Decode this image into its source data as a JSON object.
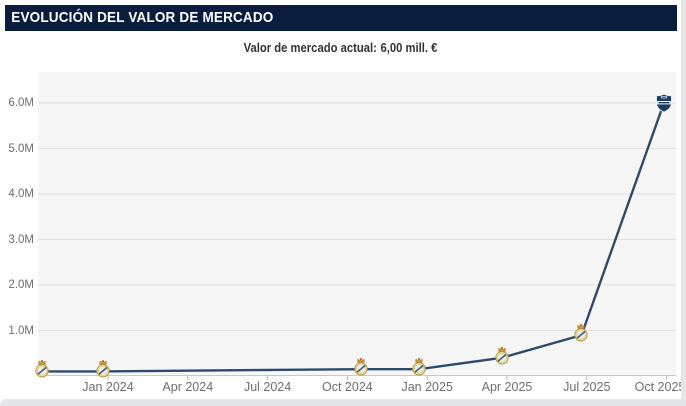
{
  "page": {
    "top_clipped_text": "EVOLUCIÓN DEL",
    "header_title": "EVOLUCIÓN DEL VALOR DE MERCADO",
    "subtitle_label": "Valor de mercado actual:",
    "subtitle_value": "6,00 mill. €"
  },
  "colors": {
    "header_navy": "#0a1d3f",
    "line_navy": "#2e4a6b",
    "plot_background": "#f6f6f6",
    "gridline": "#e0e0e0",
    "axis_line": "#c8c8c8",
    "tick_mark": "#b5b5b5",
    "label_gray": "#6e6e6e",
    "subtitle_text": "#333333",
    "crest_gold": "#b99c3c",
    "crest_cream": "#f3eed8"
  },
  "chart_data": {
    "type": "line",
    "title": "EVOLUCIÓN DEL VALOR DE MERCADO",
    "subtitle": "Valor de mercado actual: 6,00 mill. €",
    "unit": "mill. €",
    "ylabel": "",
    "xlabel": "",
    "ylim": [
      0,
      6.7
    ],
    "grid": true,
    "legend": "none",
    "y_ticks": [
      {
        "value": 1,
        "label": "1.0M"
      },
      {
        "value": 2,
        "label": "2.0M"
      },
      {
        "value": 3,
        "label": "3.0M"
      },
      {
        "value": 4,
        "label": "4.0M"
      },
      {
        "value": 5,
        "label": "5.0M"
      },
      {
        "value": 6,
        "label": "6.0M"
      }
    ],
    "x_ticks": [
      {
        "months_from_jan2024": 0,
        "label": "Jan 2024"
      },
      {
        "months_from_jan2024": 3,
        "label": "Apr 2024"
      },
      {
        "months_from_jan2024": 6,
        "label": "Jul 2024"
      },
      {
        "months_from_jan2024": 9,
        "label": "Oct 2024"
      },
      {
        "months_from_jan2024": 12,
        "label": "Jan 2025"
      },
      {
        "months_from_jan2024": 15,
        "label": "Apr 2025"
      },
      {
        "months_from_jan2024": 18,
        "label": "Jul 2025"
      },
      {
        "months_from_jan2024": 21,
        "label": "Oct 2025"
      }
    ],
    "series": [
      {
        "name": "Valor de mercado",
        "color": "#2e4a6b",
        "points": [
          {
            "date": "Oct 2023",
            "months_from_jan2024": -2.5,
            "value_mill": 0.1,
            "marker": "real-madrid-crest"
          },
          {
            "date": "Dec 2023",
            "months_from_jan2024": -0.2,
            "value_mill": 0.1,
            "marker": "real-madrid-crest"
          },
          {
            "date": "Oct 2024",
            "months_from_jan2024": 9.5,
            "value_mill": 0.15,
            "marker": "real-madrid-crest"
          },
          {
            "date": "Dec 2024",
            "months_from_jan2024": 11.7,
            "value_mill": 0.15,
            "marker": "real-madrid-crest"
          },
          {
            "date": "Mar 2025",
            "months_from_jan2024": 14.8,
            "value_mill": 0.4,
            "marker": "real-madrid-crest"
          },
          {
            "date": "Jul 2025",
            "months_from_jan2024": 17.8,
            "value_mill": 0.9,
            "marker": "real-madrid-crest"
          },
          {
            "date": "Oct 2025",
            "months_from_jan2024": 20.9,
            "value_mill": 6.0,
            "marker": "club-badge"
          }
        ]
      }
    ]
  }
}
